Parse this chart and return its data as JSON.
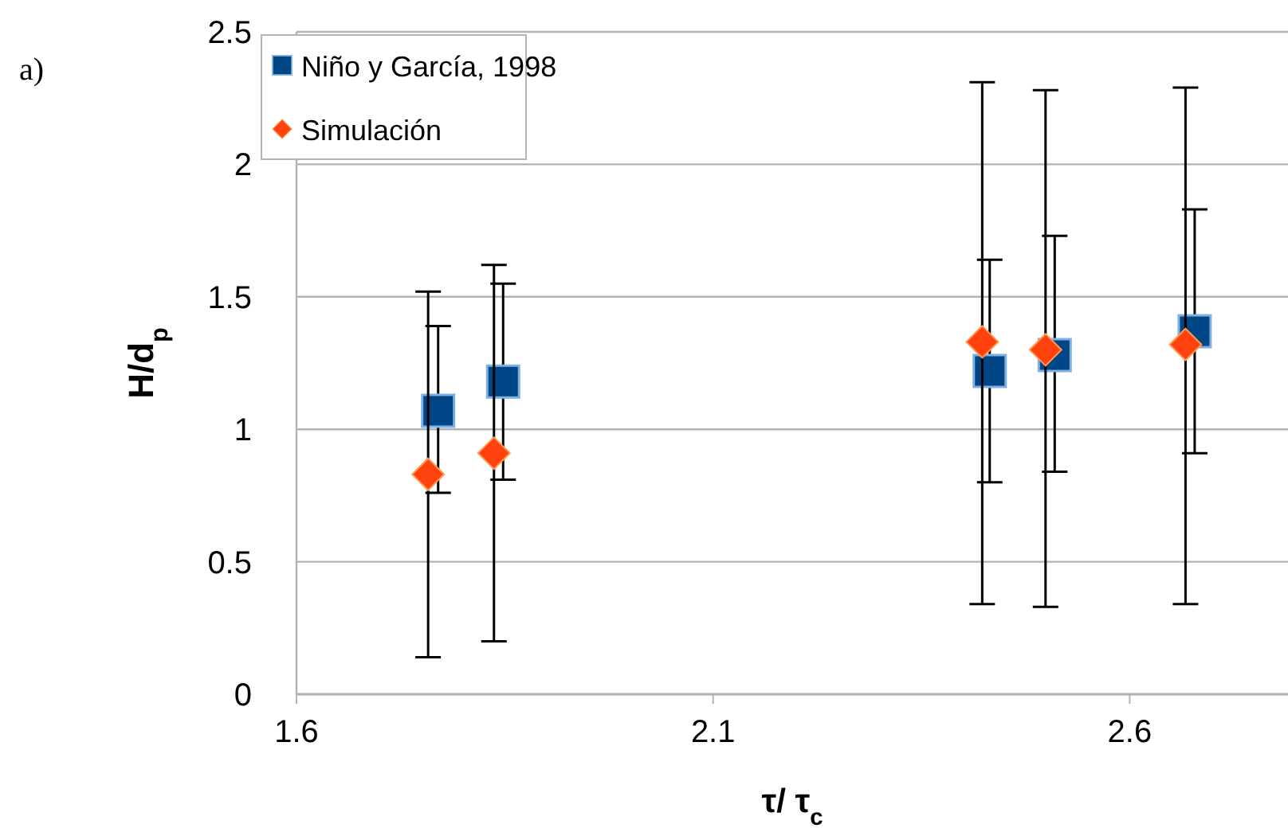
{
  "chart_data": {
    "type": "scatter",
    "xlabel": "τ/ τ$_{c}$",
    "ylabel": "H/d$_{p}$",
    "annotations": [
      "a)"
    ],
    "xlim": [
      1.6,
      2.79
    ],
    "xticks": [
      1.6,
      2.1,
      2.6
    ],
    "ylim": [
      0,
      2.5
    ],
    "yticks": [
      0,
      0.5,
      1,
      1.5,
      2,
      2.5
    ],
    "grid": "y",
    "legend": "top left",
    "series": [
      {
        "name": "Niño y García, 1998",
        "color": "#004586",
        "marker": "square",
        "x": [
          1.77,
          1.848,
          2.432,
          2.51,
          2.678
        ],
        "values": [
          1.07,
          1.18,
          1.22,
          1.28,
          1.37
        ],
        "errors": [
          [
            0.76,
            1.39
          ],
          [
            0.81,
            1.55
          ],
          [
            0.8,
            1.64
          ],
          [
            0.84,
            1.73
          ],
          [
            0.91,
            1.83
          ]
        ]
      },
      {
        "name": "Simulación",
        "color": "#ff420e",
        "marker": "diamond",
        "x": [
          1.758,
          1.837,
          2.423,
          2.499,
          2.667
        ],
        "values": [
          0.83,
          0.91,
          1.33,
          1.3,
          1.32
        ],
        "errors": [
          [
            0.14,
            1.52
          ],
          [
            0.2,
            1.62
          ],
          [
            0.34,
            2.31
          ],
          [
            0.33,
            2.28
          ],
          [
            0.34,
            2.29
          ]
        ]
      }
    ]
  }
}
